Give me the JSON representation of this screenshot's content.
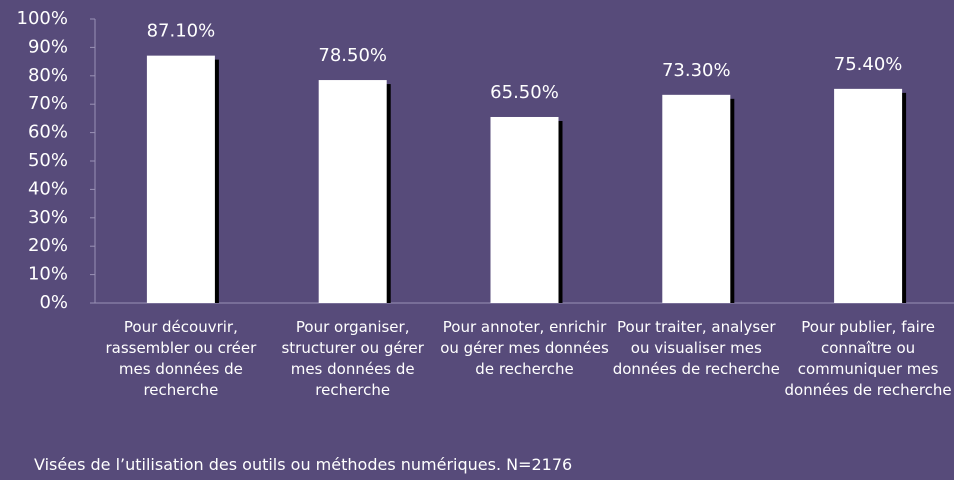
{
  "chart_data": {
    "type": "bar",
    "categories": [
      "Pour découvrir, rassembler ou créer mes données de recherche",
      "Pour organiser, structurer ou gérer mes données de recherche",
      "Pour annoter, enrichir ou gérer mes données de recherche",
      "Pour traiter, analyser ou visualiser mes données de recherche",
      "Pour publier, faire connaître ou communiquer mes données de recherche"
    ],
    "values": [
      87.1,
      78.5,
      65.5,
      73.3,
      75.4
    ],
    "value_labels": [
      "87.10%",
      "78.50%",
      "65.50%",
      "73.30%",
      "75.40%"
    ],
    "color": "#ffffff",
    "ylim": [
      0,
      100
    ],
    "yticks": [
      {
        "value": 0,
        "label": "0%"
      },
      {
        "value": 10,
        "label": "10%"
      },
      {
        "value": 20,
        "label": "20%"
      },
      {
        "value": 30,
        "label": "30%"
      },
      {
        "value": 40,
        "label": "40%"
      },
      {
        "value": 50,
        "label": "50%"
      },
      {
        "value": 60,
        "label": "60%"
      },
      {
        "value": 70,
        "label": "70%"
      },
      {
        "value": 80,
        "label": "80%"
      },
      {
        "value": 90,
        "label": "90%"
      },
      {
        "value": 100,
        "label": "100%"
      }
    ],
    "grid": false,
    "caption": "Visées de l’utilisation des outils ou méthodes numériques. N=2176"
  }
}
